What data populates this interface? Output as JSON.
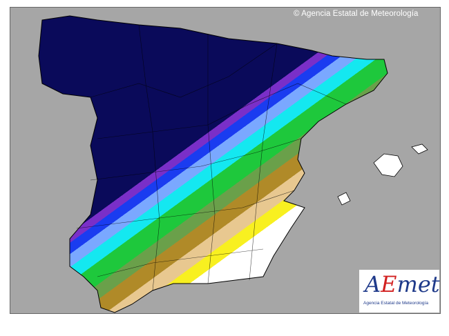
{
  "copyright": "© Agencia Estatal de Meteorología",
  "logo": {
    "a": "A",
    "e": "E",
    "rest": "met",
    "subtitle": "Agencia Estatal de Meteorología"
  },
  "colors": {
    "background": "#a6a6a6",
    "bands": [
      "#0a0a5a",
      "#7a2fc8",
      "#1a3cf0",
      "#7aa8ff",
      "#14e8f0",
      "#1ec83c",
      "#6aa04a",
      "#b08a28",
      "#e8c890",
      "#f8f020",
      "#ffffff"
    ]
  }
}
